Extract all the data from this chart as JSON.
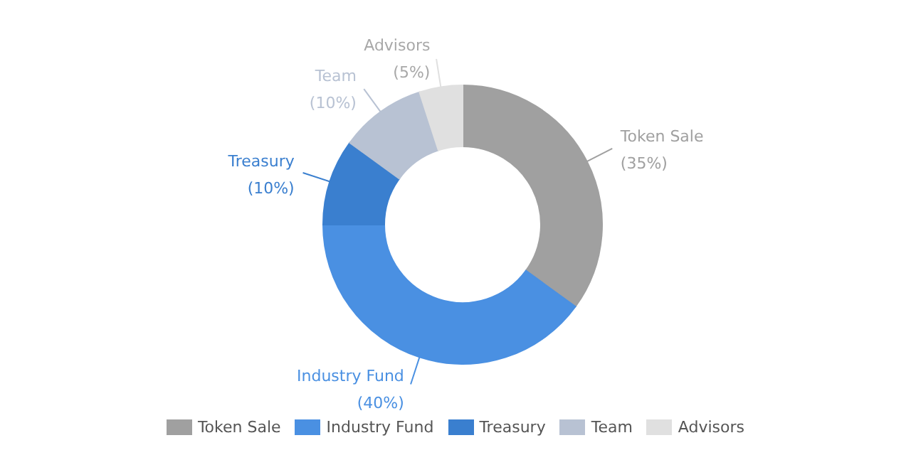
{
  "chart_data": {
    "type": "donut",
    "categories": [
      "Token Sale",
      "Industry Fund",
      "Treasury",
      "Team",
      "Advisors"
    ],
    "values": [
      35,
      40,
      10,
      10,
      5
    ],
    "colors": [
      "#a0a0a0",
      "#4a90e2",
      "#3a7fcf",
      "#b8c2d3",
      "#e0e0e0"
    ],
    "value_labels": [
      "(35%)",
      "(40%)",
      "(10%)",
      "(10%)",
      "(5%)"
    ],
    "legend": "bottom"
  }
}
